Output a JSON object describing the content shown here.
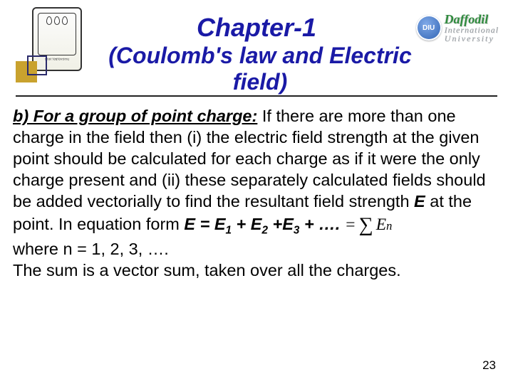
{
  "colors": {
    "title": "#1a1aa6",
    "accent_gold": "#c9a22e",
    "accent_navy": "#2b2b6b",
    "rule": "#222222",
    "uni_green": "#2e8b3d",
    "uni_gray": "#9aa0a6"
  },
  "title": "Chapter-1",
  "subtitle": "(Coulomb's law and Electric field)",
  "university": {
    "badge_text": "DIU",
    "line1": "Daffodil",
    "line2": "International",
    "line3": "University"
  },
  "body": {
    "lead_label": "b) For a group of point charge:",
    "para": " If there are more than one charge in the field then (i) the electric field strength at the given point should be calculated for each charge as if it were the only charge present and (ii) these separately calculated fields should be added vectorially to find the resultant field strength ",
    "E": "E",
    "para2": " at the point. In equation form ",
    "equation_text": "E = E",
    "sub1": "1",
    "plus1": " + E",
    "sub2": "2",
    "plus2": " +E",
    "sub3": "3",
    "trail": " + ….",
    "where": "where n = 1, 2, 3, ….",
    "closing": "The sum is a vector sum, taken over all the charges."
  },
  "page_number": "23"
}
